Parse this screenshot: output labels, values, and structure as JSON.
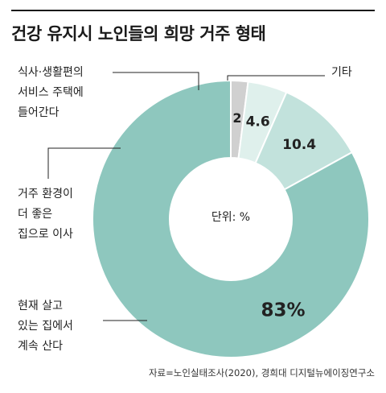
{
  "title": "건강 유지시 노인들의 희망 거주 형태",
  "unit_label": "단위: %",
  "source": "자료=노인실태조사(2020), 경희대 디지털뉴에이징연구소",
  "colors": {
    "main": "#8ec7be",
    "mid": "#c2e2dc",
    "light": "#dff0ec",
    "other": "#d0d0d0",
    "value_main": "#ffffff"
  },
  "chart_data": {
    "type": "pie",
    "donut": true,
    "title": "건강 유지시 노인들의 희망 거주 형태",
    "unit": "%",
    "slices": [
      {
        "label_lines": [
          "기타"
        ],
        "value": 2,
        "value_label": "2"
      },
      {
        "label_lines": [
          "식사·생활편의",
          "서비스 주택에",
          "들어간다"
        ],
        "value": 4.6,
        "value_label": "4.6"
      },
      {
        "label_lines": [
          "거주 환경이",
          "더 좋은",
          "집으로 이사"
        ],
        "value": 10.4,
        "value_label": "10.4"
      },
      {
        "label_lines": [
          "현재 살고",
          "있는 집에서",
          "계속 산다"
        ],
        "value": 83,
        "value_label": "83%"
      }
    ]
  }
}
